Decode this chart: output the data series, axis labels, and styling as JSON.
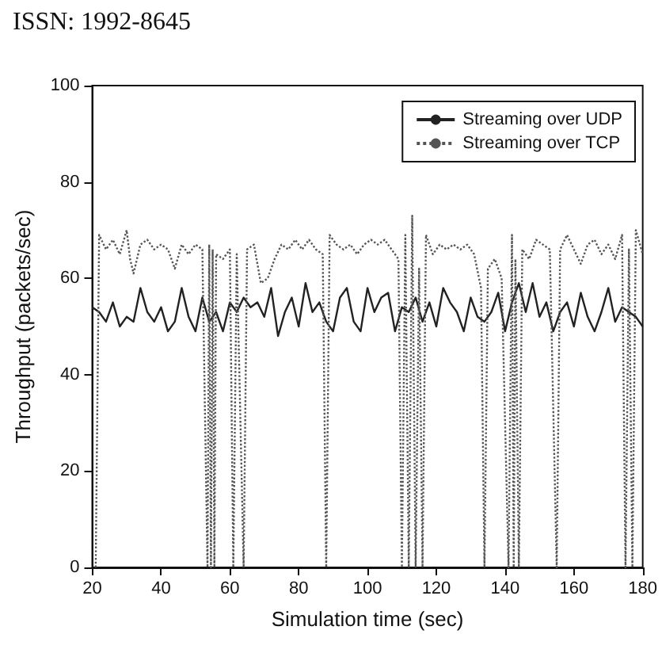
{
  "chart_data": {
    "type": "line",
    "xlabel": "Simulation time (sec)",
    "ylabel": "Throughput (packets/sec)",
    "annotations": [
      "ISSN: 1992-8645"
    ],
    "xlim": [
      20,
      180
    ],
    "xticks": [
      20,
      40,
      60,
      80,
      100,
      120,
      140,
      160,
      180
    ],
    "ylim": [
      0,
      100
    ],
    "yticks": [
      0,
      20,
      40,
      60,
      80,
      100
    ],
    "grid": false,
    "legend": "top right",
    "marker": "none",
    "series": [
      {
        "name": "Streaming over UDP",
        "color": "#222222",
        "line_style": "solid",
        "x": [
          20,
          22,
          24,
          26,
          28,
          30,
          32,
          34,
          36,
          38,
          40,
          42,
          44,
          46,
          48,
          50,
          52,
          54,
          56,
          58,
          60,
          62,
          64,
          66,
          68,
          70,
          72,
          74,
          76,
          78,
          80,
          82,
          84,
          86,
          88,
          90,
          92,
          94,
          96,
          98,
          100,
          102,
          104,
          106,
          108,
          110,
          112,
          114,
          116,
          118,
          120,
          122,
          124,
          126,
          128,
          130,
          132,
          134,
          136,
          138,
          140,
          142,
          144,
          146,
          148,
          150,
          152,
          154,
          156,
          158,
          160,
          162,
          164,
          166,
          168,
          170,
          172,
          174,
          176,
          178,
          180
        ],
        "values": [
          54,
          53,
          51,
          55,
          50,
          52,
          51,
          58,
          53,
          51,
          54,
          49,
          51,
          58,
          52,
          49,
          56,
          51,
          53,
          49,
          55,
          53,
          56,
          54,
          55,
          52,
          58,
          48,
          53,
          56,
          50,
          59,
          53,
          55,
          51,
          49,
          56,
          58,
          51,
          49,
          58,
          53,
          56,
          57,
          49,
          54,
          53,
          56,
          51,
          55,
          50,
          58,
          55,
          53,
          49,
          56,
          52,
          51,
          53,
          57,
          49,
          55,
          59,
          53,
          59,
          52,
          55,
          49,
          53,
          55,
          50,
          57,
          52,
          49,
          53,
          58,
          51,
          54,
          53,
          52,
          50
        ]
      },
      {
        "name": "Streaming over TCP",
        "color": "#555555",
        "line_style": "dotted",
        "x": [
          21,
          22,
          24,
          26,
          28,
          30,
          31,
          32,
          34,
          36,
          38,
          40,
          42,
          44,
          46,
          48,
          50,
          52,
          53.5,
          54,
          54.5,
          55,
          55.5,
          56,
          58,
          60,
          61,
          62,
          64,
          65,
          67,
          69,
          71,
          73,
          75,
          77,
          79,
          81,
          83,
          85,
          87,
          88,
          89,
          91,
          93,
          95,
          97,
          99,
          101,
          103,
          105,
          107,
          109,
          110,
          111,
          112,
          113,
          114,
          115,
          116,
          117,
          119,
          121,
          123,
          125,
          127,
          129,
          131,
          133,
          134,
          135,
          137,
          139,
          141,
          142,
          142.5,
          143,
          144,
          145,
          147,
          149,
          151,
          153,
          155,
          156,
          158,
          160,
          162,
          164,
          166,
          168,
          170,
          172,
          174,
          175,
          176,
          177,
          178,
          180
        ],
        "values": [
          0,
          69,
          66,
          68,
          65,
          70,
          64,
          61,
          67,
          68,
          66,
          67,
          66,
          62,
          67,
          65,
          67,
          66,
          0,
          67,
          0,
          66,
          0,
          65,
          64,
          66,
          0,
          65,
          0,
          66,
          67,
          59,
          60,
          64,
          67,
          66,
          68,
          66,
          68,
          66,
          65,
          0,
          69,
          67,
          66,
          67,
          65,
          67,
          68,
          67,
          68,
          66,
          64,
          0,
          69,
          0,
          73,
          0,
          62,
          0,
          69,
          65,
          67,
          66,
          67,
          66,
          67,
          65,
          58,
          0,
          62,
          64,
          60,
          0,
          69,
          0,
          64,
          0,
          66,
          64,
          68,
          67,
          66,
          0,
          66,
          69,
          66,
          63,
          67,
          68,
          65,
          67,
          64,
          69,
          0,
          66,
          0,
          70,
          65
        ]
      }
    ]
  }
}
